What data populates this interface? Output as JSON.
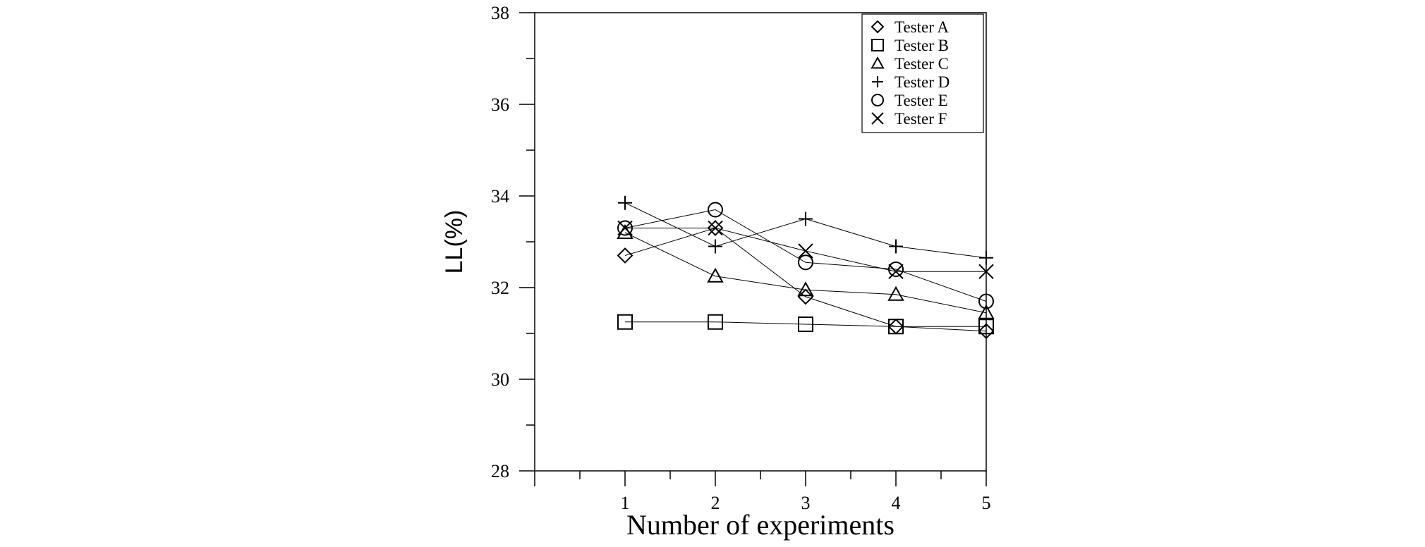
{
  "chart_data": {
    "type": "line",
    "xlabel": "Number of experiments",
    "ylabel": "LL(%)",
    "xlim": [
      0,
      5
    ],
    "ylim": [
      28,
      38
    ],
    "x": [
      1,
      2,
      3,
      4,
      5
    ],
    "xticks": [
      "1",
      "2",
      "3",
      "4",
      "5"
    ],
    "yticks": [
      "28",
      "30",
      "32",
      "34",
      "36",
      "38"
    ],
    "grid": false,
    "legend_position": "top-right",
    "series": [
      {
        "name": "Tester A",
        "marker": "diamond",
        "values": [
          32.7,
          33.3,
          31.8,
          31.15,
          31.05
        ]
      },
      {
        "name": "Tester B",
        "marker": "square",
        "values": [
          31.25,
          31.25,
          31.2,
          31.15,
          31.15
        ]
      },
      {
        "name": "Tester C",
        "marker": "triangle",
        "values": [
          33.2,
          32.25,
          31.95,
          31.85,
          31.45
        ]
      },
      {
        "name": "Tester D",
        "marker": "plus",
        "values": [
          33.85,
          32.9,
          33.5,
          32.9,
          32.65
        ]
      },
      {
        "name": "Tester E",
        "marker": "circle",
        "values": [
          33.3,
          33.7,
          32.55,
          32.4,
          31.7
        ]
      },
      {
        "name": "Tester F",
        "marker": "cross",
        "values": [
          33.3,
          33.3,
          32.8,
          32.35,
          32.35
        ]
      }
    ]
  }
}
